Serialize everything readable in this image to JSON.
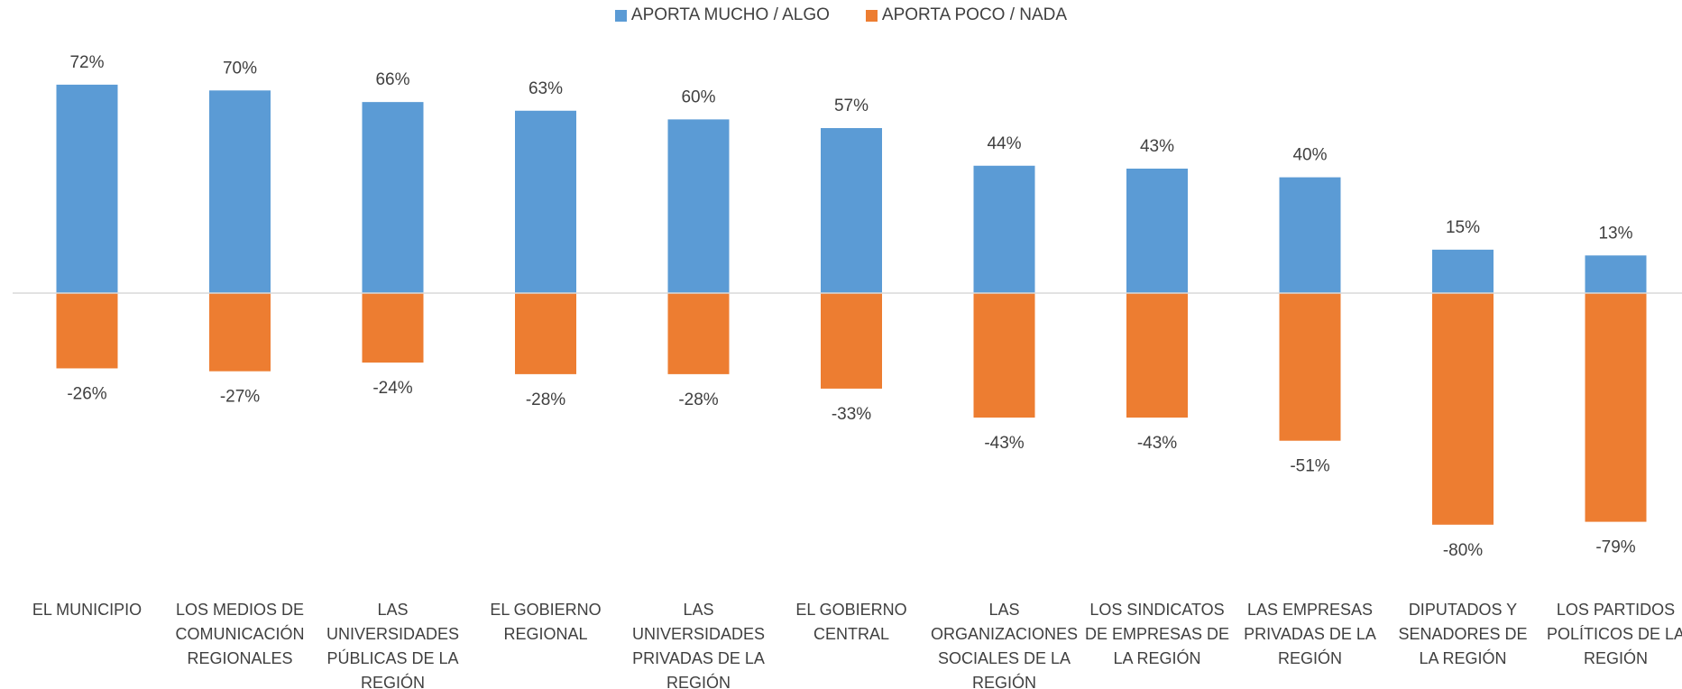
{
  "chart_data": {
    "type": "bar",
    "categories": [
      "EL MUNICIPIO",
      "LOS MEDIOS DE COMUNICACIÓN REGIONALES",
      "LAS UNIVERSIDADES PÚBLICAS DE LA REGIÓN",
      "EL GOBIERNO REGIONAL",
      "LAS UNIVERSIDADES PRIVADAS DE LA REGIÓN",
      "EL GOBIERNO CENTRAL",
      "LAS ORGANIZACIONES SOCIALES DE LA REGIÓN",
      "LOS SINDICATOS DE EMPRESAS DE LA REGIÓN",
      "LAS EMPRESAS PRIVADAS DE LA REGIÓN",
      "DIPUTADOS Y SENADORES DE LA REGIÓN",
      "LOS PARTIDOS POLÍTICOS DE LA REGIÓN"
    ],
    "series": [
      {
        "name": "APORTA MUCHO / ALGO",
        "color": "#5b9bd5",
        "values": [
          72,
          70,
          66,
          63,
          60,
          57,
          44,
          43,
          40,
          15,
          13
        ],
        "value_labels": [
          "72%",
          "70%",
          "66%",
          "63%",
          "60%",
          "57%",
          "44%",
          "43%",
          "40%",
          "15%",
          "13%"
        ]
      },
      {
        "name": "APORTA POCO / NADA",
        "color": "#ed7d31",
        "values": [
          -26,
          -27,
          -24,
          -28,
          -28,
          -33,
          -43,
          -43,
          -51,
          -80,
          -79
        ],
        "value_labels": [
          "-26%",
          "-27%",
          "-24%",
          "-28%",
          "-28%",
          "-33%",
          "-43%",
          "-43%",
          "-51%",
          "-80%",
          "-79%"
        ]
      }
    ],
    "ylim": [
      -100,
      100
    ],
    "legend": "top"
  }
}
